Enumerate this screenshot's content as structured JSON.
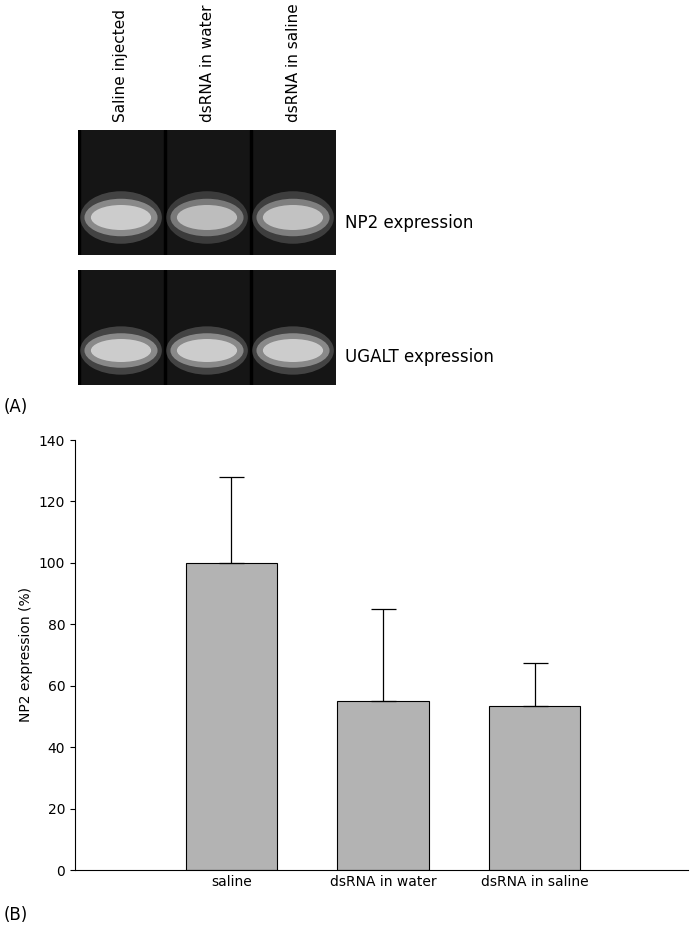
{
  "gel": {
    "panel_label": "(A)",
    "lanes": [
      "Saline injected",
      "dsRNA in water",
      "dsRNA in saline"
    ],
    "rows": [
      "NP2 expression",
      "UGALT expression"
    ]
  },
  "chart_panel_label": "(B)",
  "chart_data": {
    "type": "bar",
    "ylabel": "NP2 expression (%)",
    "categories": [
      "saline",
      "dsRNA in water",
      "dsRNA in saline"
    ],
    "values": [
      100,
      55,
      53.5
    ],
    "errors": [
      28,
      30,
      14
    ],
    "color": "#b3b3b3",
    "ylim": [
      0,
      140
    ],
    "yticks": [
      0,
      20,
      40,
      60,
      80,
      100,
      120,
      140
    ],
    "grid": false
  }
}
